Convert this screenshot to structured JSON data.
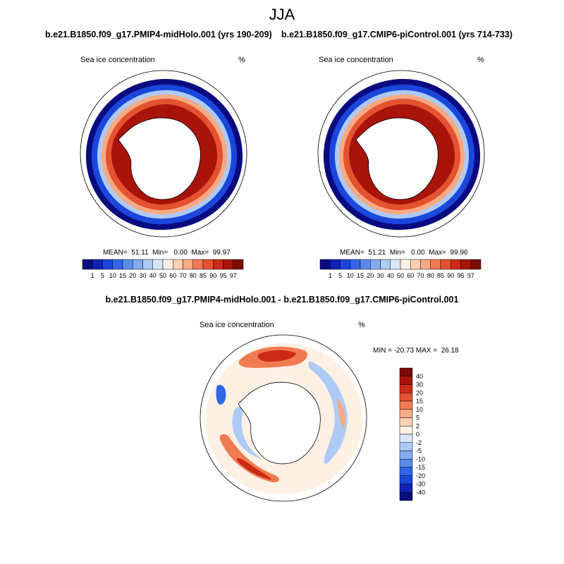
{
  "season": "JJA",
  "panels": [
    {
      "title": "b.e21.B1850.f09_g17.PMIP4-midHolo.001 (yrs 190-209)",
      "variable": "Sea ice concentration",
      "units": "%",
      "stats": "MEAN=  51.11  Min=   0.00  Max=  99.97"
    },
    {
      "title": "b.e21.B1850.f09_g17.CMIP6-piControl.001 (yrs 714-733)",
      "variable": "Sea ice concentration",
      "units": "%",
      "stats": "MEAN=  51.21  Min=   0.00  Max=  99.96"
    }
  ],
  "difference": {
    "title": "b.e21.B1850.f09_g17.PMIP4-midHolo.001 - b.e21.B1850.f09_g17.CMIP6-piControl.001",
    "variable": "Sea ice concentration",
    "units": "%",
    "stats": "MIN = -20.73 MAX =  26.18"
  },
  "colorbar_abs": {
    "labels": [
      "1",
      "5",
      "10",
      "15",
      "20",
      "30",
      "40",
      "50",
      "60",
      "70",
      "80",
      "85",
      "90",
      "95",
      "97"
    ],
    "colors": [
      "#0a0a80",
      "#0f22b4",
      "#1a46dc",
      "#3366e8",
      "#5a8aec",
      "#84aaf0",
      "#aecaf6",
      "#d8e8fb",
      "#fff0e4",
      "#fcd2b4",
      "#f8aa84",
      "#f07a52",
      "#e45230",
      "#cc2a16",
      "#a8140a",
      "#7a0a04"
    ]
  },
  "colorbar_diff": {
    "labels": [
      "40",
      "30",
      "20",
      "15",
      "10",
      "5",
      "2",
      "0",
      "-2",
      "-5",
      "-10",
      "-15",
      "-20",
      "-30",
      "-40"
    ],
    "colors": [
      "#7a0a04",
      "#a8140a",
      "#cc2a16",
      "#e45230",
      "#f07a52",
      "#f8aa84",
      "#fcd2b4",
      "#fff0e4",
      "#d8e8fb",
      "#aecaf6",
      "#84aaf0",
      "#5a8aec",
      "#3366e8",
      "#1a46dc",
      "#0f22b4",
      "#0a0a80"
    ]
  }
}
